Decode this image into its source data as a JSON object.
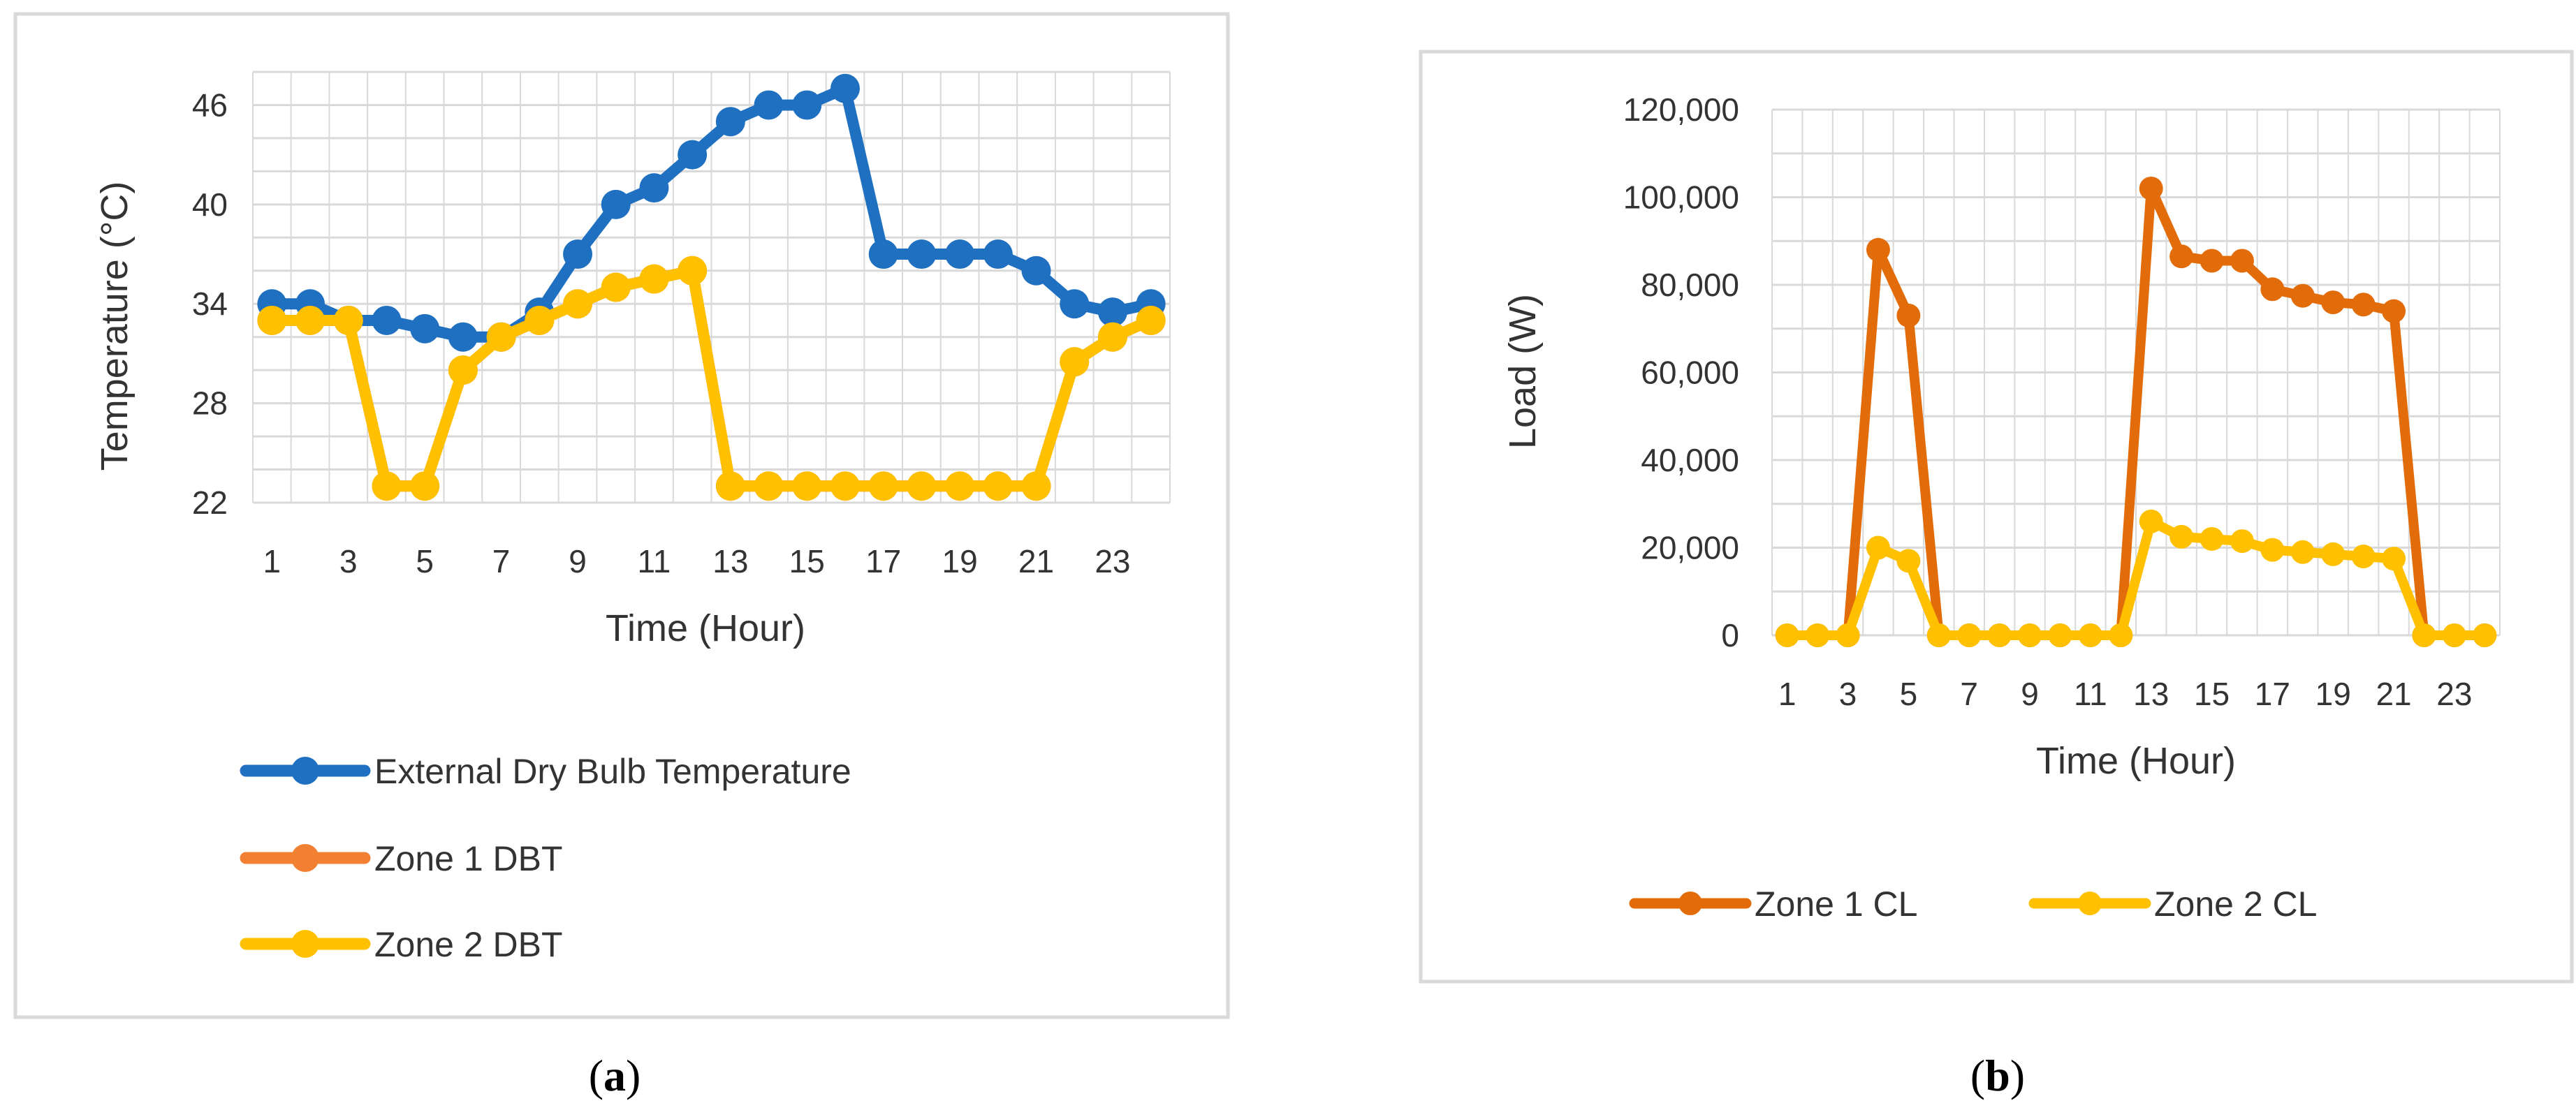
{
  "colors": {
    "blue": "#1F70C1",
    "orange": "#F28032",
    "yellow": "#FFC000",
    "dark_orange": "#E36C0A",
    "grid": "#D9D9D9",
    "frame": "#D9D9D9"
  },
  "chart_data": [
    {
      "panel": "a",
      "type": "line",
      "caption_open": "(",
      "caption_letter": "a",
      "caption_close": ")",
      "title": "",
      "xlabel": "Time (Hour)",
      "ylabel": "Temperature (°C)",
      "x": [
        1,
        2,
        3,
        4,
        5,
        6,
        7,
        8,
        9,
        10,
        11,
        12,
        13,
        14,
        15,
        16,
        17,
        18,
        19,
        20,
        21,
        22,
        23,
        24
      ],
      "x_tick_labels": [
        "1",
        "3",
        "5",
        "7",
        "9",
        "11",
        "13",
        "15",
        "17",
        "19",
        "21",
        "23"
      ],
      "yticks": [
        22,
        28,
        34,
        40,
        46
      ],
      "y_tick_labels": [
        "22",
        "28",
        "34",
        "40",
        "46"
      ],
      "ylim": [
        22,
        48
      ],
      "grid": true,
      "legend_position": "bottom",
      "series": [
        {
          "name": "External Dry Bulb Temperature",
          "color_key": "blue",
          "values": [
            34,
            34,
            33,
            33,
            32.5,
            32,
            32,
            33.5,
            37,
            40,
            41,
            43,
            45,
            46,
            46,
            47,
            37,
            37,
            37,
            37,
            36,
            34,
            33.5,
            34
          ]
        },
        {
          "name": "Zone 1 DBT",
          "color_key": "orange",
          "values": [
            33,
            33,
            33,
            23,
            23,
            30,
            32,
            33,
            34,
            35,
            35.5,
            36,
            23,
            23,
            23,
            23,
            23,
            23,
            23,
            23,
            23,
            30.5,
            32,
            33
          ]
        },
        {
          "name": "Zone 2 DBT",
          "color_key": "yellow",
          "values": [
            33,
            33,
            33,
            23,
            23,
            30,
            32,
            33,
            34,
            35,
            35.5,
            36,
            23,
            23,
            23,
            23,
            23,
            23,
            23,
            23,
            23,
            30.5,
            32,
            33
          ]
        }
      ]
    },
    {
      "panel": "b",
      "type": "line",
      "caption_open": "(",
      "caption_letter": "b",
      "caption_close": ")",
      "title": "",
      "xlabel": "Time (Hour)",
      "ylabel": "Load (W)",
      "x": [
        1,
        2,
        3,
        4,
        5,
        6,
        7,
        8,
        9,
        10,
        11,
        12,
        13,
        14,
        15,
        16,
        17,
        18,
        19,
        20,
        21,
        22,
        23,
        24
      ],
      "x_tick_labels": [
        "1",
        "3",
        "5",
        "7",
        "9",
        "11",
        "13",
        "15",
        "17",
        "19",
        "21",
        "23"
      ],
      "yticks": [
        0,
        20000,
        40000,
        60000,
        80000,
        100000,
        120000
      ],
      "y_tick_labels": [
        "0",
        "20,000",
        "40,000",
        "60,000",
        "80,000",
        "100,000",
        "120,000"
      ],
      "ylim": [
        0,
        120000
      ],
      "grid": true,
      "legend_position": "bottom",
      "series": [
        {
          "name": "Zone 1 CL",
          "color_key": "dark_orange",
          "values": [
            0,
            0,
            0,
            88000,
            73000,
            0,
            0,
            0,
            0,
            0,
            0,
            0,
            102000,
            86500,
            85500,
            85500,
            79000,
            77500,
            76000,
            75500,
            74000,
            0,
            0,
            0
          ]
        },
        {
          "name": "Zone 2 CL",
          "color_key": "yellow",
          "values": [
            0,
            0,
            0,
            20000,
            17000,
            0,
            0,
            0,
            0,
            0,
            0,
            0,
            26000,
            22500,
            22000,
            21500,
            19500,
            19000,
            18500,
            18000,
            17500,
            0,
            0,
            0
          ]
        }
      ]
    }
  ]
}
